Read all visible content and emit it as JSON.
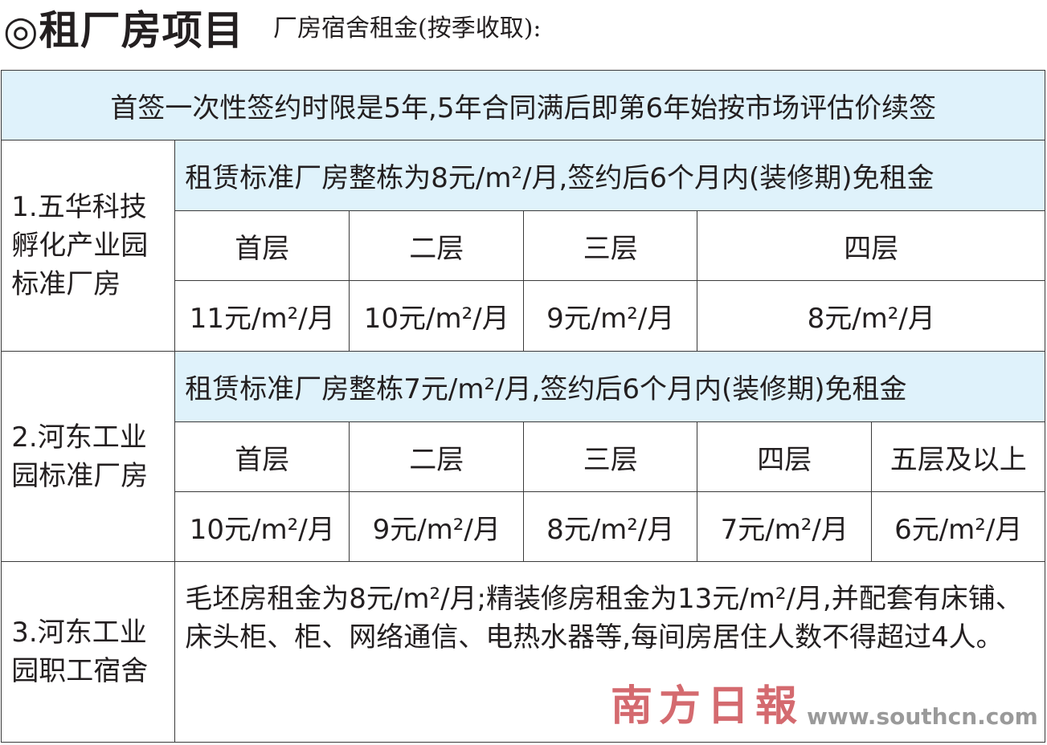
{
  "header": {
    "title": "◎租厂房项目",
    "subtitle": "厂房宿舍租金(按季收取):"
  },
  "table": {
    "top_note": "首签一次性签约时限是5年,5年合同满后即第6年始按市场评估价续签",
    "project1": {
      "name_lines": [
        "1.五华科技",
        "孵化产业园",
        "标准厂房"
      ],
      "note": "租赁标准厂房整栋为8元/m²/月,签约后6个月内(装修期)免租金",
      "floors": [
        "首层",
        "二层",
        "三层",
        "四层"
      ],
      "prices": [
        "11元/m²/月",
        "10元/m²/月",
        "9元/m²/月",
        "8元/m²/月"
      ]
    },
    "project2": {
      "name_lines": [
        "2.河东工业",
        "园标准厂房"
      ],
      "note": "租赁标准厂房整栋7元/m²/月,签约后6个月内(装修期)免租金",
      "floors": [
        "首层",
        "二层",
        "三层",
        "四层",
        "五层及以上"
      ],
      "prices": [
        "10元/m²/月",
        "9元/m²/月",
        "8元/m²/月",
        "7元/m²/月",
        "6元/m²/月"
      ]
    },
    "project3": {
      "name_lines": [
        "3.河东工业",
        "园职工宿舍"
      ],
      "description": "毛坯房租金为8元/m²/月;精装修房租金为13元/m²/月,并配套有床铺、床头柜、柜、网络通信、电热水器等,每间房居住人数不得超过4人。"
    }
  },
  "watermark": {
    "logo_text": "南方日報",
    "url": "www.southcn.com",
    "color": "#d46a6f"
  },
  "colors": {
    "row_highlight": "#dff2fb",
    "border": "#3a3a3a"
  }
}
